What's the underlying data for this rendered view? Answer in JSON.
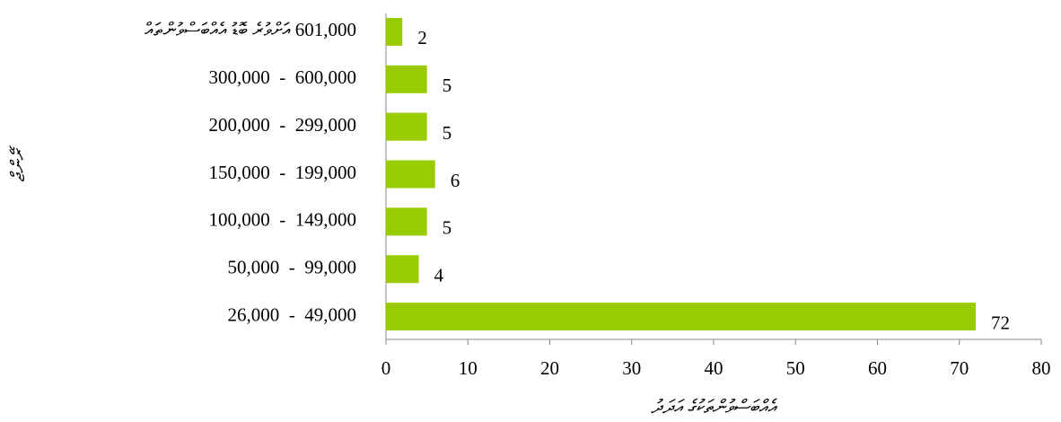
{
  "chart_data": {
    "type": "bar",
    "orientation": "horizontal",
    "x_label": "އެއްބަސްވުންތަކުގެ އަދަދު",
    "y_label": "ރޭންޖް",
    "categories": [
      "601,000 އަށްވުރެ ބޮޑު އެއްބަސްވުންތައް",
      "300,000  -  600,000",
      "200,000  -  299,000",
      "150,000  -  199,000",
      "100,000  -  149,000",
      "50,000  -  99,000",
      "26,000  -  49,000"
    ],
    "values": [
      2,
      5,
      5,
      6,
      5,
      4,
      72
    ],
    "color": "#99cc00",
    "xlim": [
      0,
      80
    ],
    "xticks": [
      0,
      10,
      20,
      30,
      40,
      50,
      60,
      70,
      80
    ],
    "grid": false
  }
}
